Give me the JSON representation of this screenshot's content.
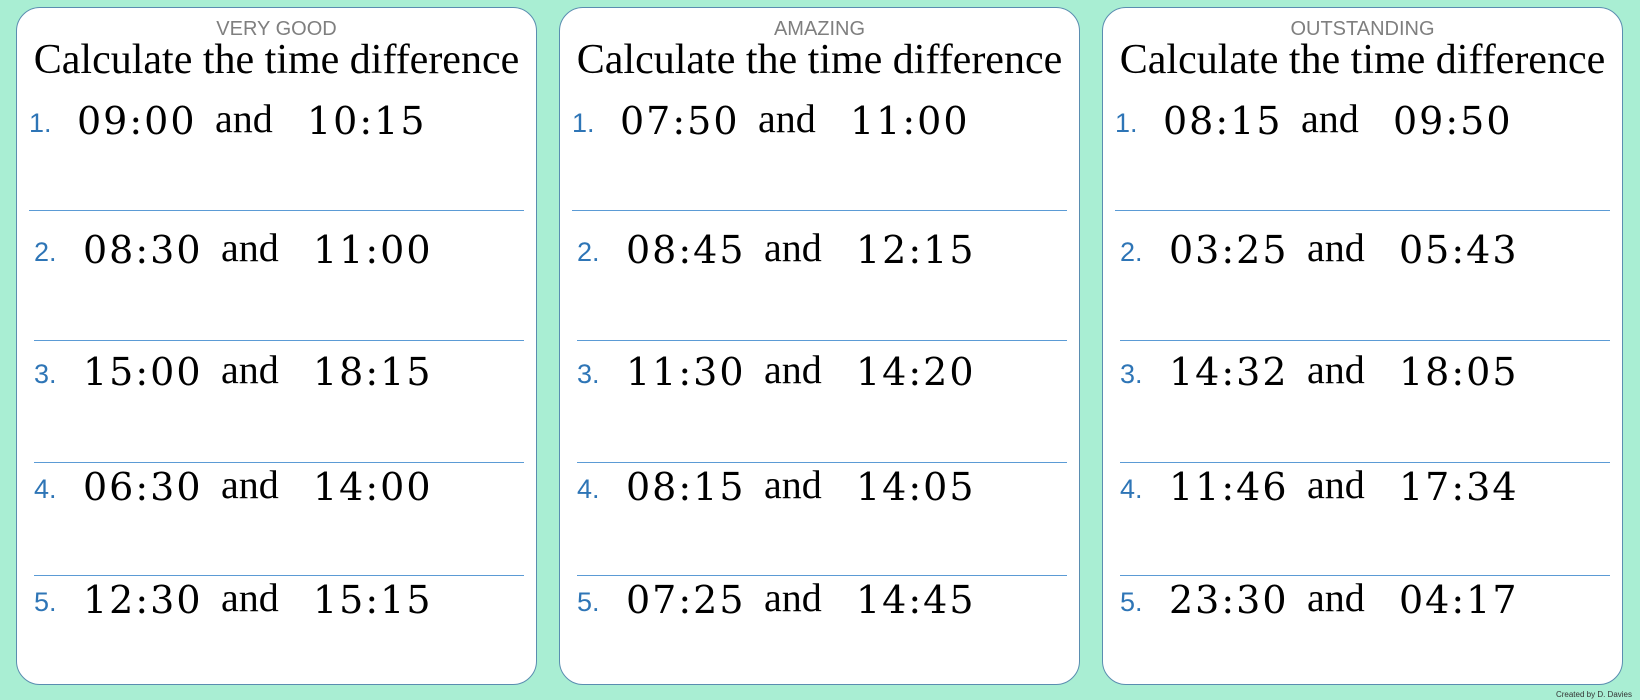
{
  "cards": [
    {
      "level": "VERY GOOD",
      "title": "Calculate the time difference",
      "questions": [
        {
          "number": "1.",
          "start": "09:00",
          "connector": "and",
          "end": "10:15"
        },
        {
          "number": "2.",
          "start": "08:30",
          "connector": "and",
          "end": "11:00"
        },
        {
          "number": "3.",
          "start": "15:00",
          "connector": "and",
          "end": "18:15"
        },
        {
          "number": "4.",
          "start": "06:30",
          "connector": "and",
          "end": "14:00"
        },
        {
          "number": "5.",
          "start": "12:30",
          "connector": "and",
          "end": "15:15"
        }
      ]
    },
    {
      "level": "AMAZING",
      "title": "Calculate the time difference",
      "questions": [
        {
          "number": "1.",
          "start": "07:50",
          "connector": "and",
          "end": "11:00"
        },
        {
          "number": "2.",
          "start": "08:45",
          "connector": "and",
          "end": "12:15"
        },
        {
          "number": "3.",
          "start": "11:30",
          "connector": "and",
          "end": "14:20"
        },
        {
          "number": "4.",
          "start": "08:15",
          "connector": "and",
          "end": "14:05"
        },
        {
          "number": "5.",
          "start": "07:25",
          "connector": "and",
          "end": "14:45"
        }
      ]
    },
    {
      "level": "OUTSTANDING",
      "title": "Calculate the time difference",
      "questions": [
        {
          "number": "1.",
          "start": "08:15",
          "connector": "and",
          "end": "09:50"
        },
        {
          "number": "2.",
          "start": "03:25",
          "connector": "and",
          "end": "05:43"
        },
        {
          "number": "3.",
          "start": "14:32",
          "connector": "and",
          "end": "18:05"
        },
        {
          "number": "4.",
          "start": "11:46",
          "connector": "and",
          "end": "17:34"
        },
        {
          "number": "5.",
          "start": "23:30",
          "connector": "and",
          "end": "04:17"
        }
      ]
    }
  ],
  "credit": "Created by D. Davies"
}
